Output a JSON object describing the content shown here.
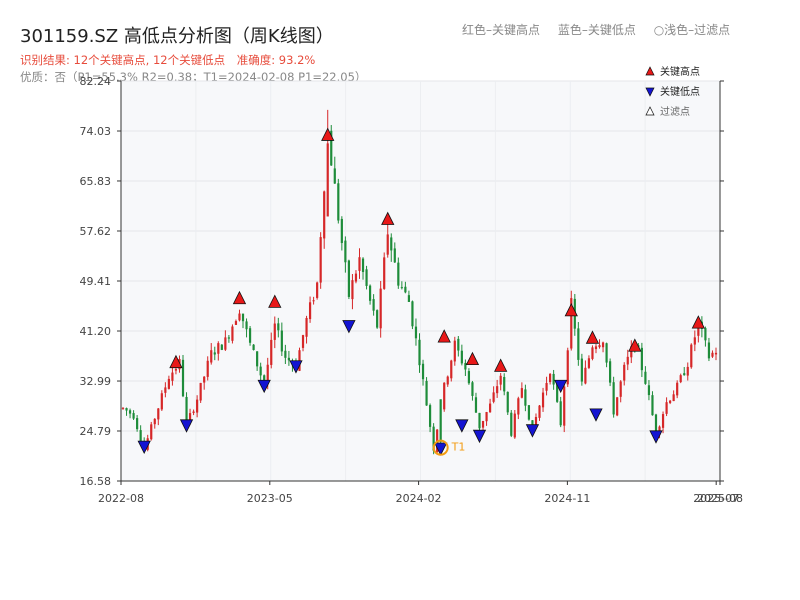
{
  "header": {
    "title": "301159.SZ 高低点分析图（周K线图）",
    "legend_red": "红色–关键高点",
    "legend_blue": "蓝色–关键低点",
    "legend_light": "○浅色–过滤点",
    "result_text": "识别结果: 12个关键高点, 12个关键低点",
    "accuracy_text": "准确度: 93.2%",
    "quality_text": "优质：否（P1=55.3%  R2=0.38；T1=2024-02-08 P1=22.05）"
  },
  "colors": {
    "up": "#d62728",
    "down": "#1e8c3a",
    "high_marker": "#e81818",
    "low_marker": "#1414d2",
    "accent": "#f39c12",
    "plot_bg": "#f7f8fa"
  },
  "chart_data": {
    "type": "candlestick",
    "title": "301159.SZ 高低点分析图（周K线图）",
    "ylim": [
      16.58,
      82.24
    ],
    "y_ticks": [
      "16.58",
      "24.79",
      "32.99",
      "41.20",
      "49.41",
      "57.62",
      "65.83",
      "74.03",
      "82.24"
    ],
    "x_ticks": [
      "2022-08",
      "2023-05",
      "2024-02",
      "2024-11",
      "2025-07",
      "2025-08"
    ],
    "x_range_index": [
      0,
      155
    ],
    "x_tick_index": [
      0,
      39,
      78,
      117,
      156,
      157
    ],
    "legend": {
      "position": "top-right",
      "high": "关键高点",
      "low": "关键低点",
      "filtered": "过滤点"
    },
    "anchors": [
      [
        0,
        28.5
      ],
      [
        3,
        27.4
      ],
      [
        6,
        21.8
      ],
      [
        9,
        27.0
      ],
      [
        13,
        33.8
      ],
      [
        16,
        36.0
      ],
      [
        18,
        25.8
      ],
      [
        21,
        30.1
      ],
      [
        25,
        37.5
      ],
      [
        29,
        39.5
      ],
      [
        33,
        45.0
      ],
      [
        36,
        39.0
      ],
      [
        40,
        32.5
      ],
      [
        43,
        42.0
      ],
      [
        46,
        37.0
      ],
      [
        49,
        35.5
      ],
      [
        52,
        43.0
      ],
      [
        55,
        49.0
      ],
      [
        58,
        74.0
      ],
      [
        61,
        60.0
      ],
      [
        64,
        47.0
      ],
      [
        67,
        53.0
      ],
      [
        70,
        46.0
      ],
      [
        72,
        42.0
      ],
      [
        75,
        57.5
      ],
      [
        78,
        49.5
      ],
      [
        81,
        46.0
      ],
      [
        84,
        36.5
      ],
      [
        88,
        22.0
      ],
      [
        91,
        32.0
      ],
      [
        94,
        39.0
      ],
      [
        97,
        35.0
      ],
      [
        101,
        25.5
      ],
      [
        104,
        29.0
      ],
      [
        107,
        34.0
      ],
      [
        110,
        24.5
      ],
      [
        113,
        32.0
      ],
      [
        116,
        25.0
      ],
      [
        118,
        29.0
      ],
      [
        121,
        35.0
      ],
      [
        124,
        26.0
      ],
      [
        127,
        45.5
      ],
      [
        130,
        32.5
      ],
      [
        133,
        39.0
      ],
      [
        136,
        40.0
      ],
      [
        139,
        28.0
      ],
      [
        142,
        35.0
      ],
      [
        145,
        39.5
      ],
      [
        148,
        33.0
      ],
      [
        151,
        24.5
      ],
      [
        154,
        29.5
      ],
      [
        157,
        32.0
      ],
      [
        160,
        36.0
      ],
      [
        163,
        42.5
      ],
      [
        166,
        37.0
      ],
      [
        168,
        38.0
      ]
    ],
    "key_highs": [
      {
        "i": 15,
        "y": 36.0
      },
      {
        "i": 33,
        "y": 46.5
      },
      {
        "i": 43,
        "y": 45.9
      },
      {
        "i": 58,
        "y": 73.3
      },
      {
        "i": 75,
        "y": 59.5
      },
      {
        "i": 91,
        "y": 40.2
      },
      {
        "i": 99,
        "y": 36.5
      },
      {
        "i": 107,
        "y": 35.4
      },
      {
        "i": 127,
        "y": 44.5
      },
      {
        "i": 133,
        "y": 40.0
      },
      {
        "i": 145,
        "y": 38.7
      },
      {
        "i": 163,
        "y": 42.5
      }
    ],
    "key_lows": [
      {
        "i": 6,
        "y": 22.3
      },
      {
        "i": 18,
        "y": 25.8
      },
      {
        "i": 40,
        "y": 32.3
      },
      {
        "i": 49,
        "y": 35.5
      },
      {
        "i": 64,
        "y": 42.1
      },
      {
        "i": 90,
        "y": 22.0
      },
      {
        "i": 96,
        "y": 25.8
      },
      {
        "i": 101,
        "y": 24.1
      },
      {
        "i": 116,
        "y": 25.0
      },
      {
        "i": 124,
        "y": 32.3
      },
      {
        "i": 134,
        "y": 27.6
      },
      {
        "i": 151,
        "y": 24.0
      }
    ],
    "t1_point": {
      "i": 90,
      "y": 22.05,
      "label": "T1"
    }
  }
}
